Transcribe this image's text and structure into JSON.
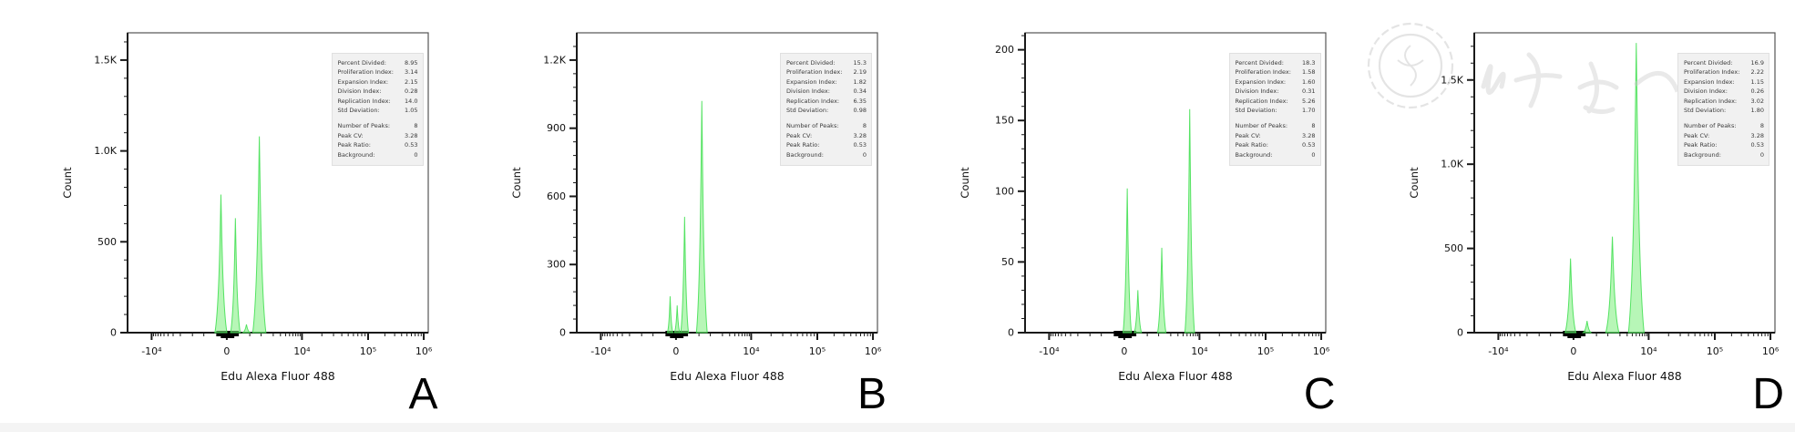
{
  "figure": {
    "xlabel": "Edu Alexa Fluor 488",
    "ylabel": "Count",
    "watermark_description": "faint journal seal and Chinese calligraphy watermark on panel D"
  },
  "colors": {
    "peak_fill": "rgba(124,238,124,0.55)",
    "peak_stroke": "rgba(70,224,85,0.9)",
    "axis": "#1a1a1a",
    "box_border": "#555555",
    "stats_bg": "#f1f1f1",
    "watermark": "#cccccc"
  },
  "chart_data": [
    {
      "panel": "A",
      "letter": "A",
      "type": "area",
      "xlabel": "Edu Alexa Fluor 488",
      "ylabel": "Count",
      "x_ticks": [
        {
          "v": -10000,
          "label": "-10⁴"
        },
        {
          "v": 0,
          "label": "0"
        },
        {
          "v": 10000,
          "label": "10⁴"
        },
        {
          "v": 100000,
          "label": "10⁵"
        },
        {
          "v": 1000000,
          "label": "10⁶"
        }
      ],
      "y_ticks": [
        {
          "v": 1500,
          "label": "1.5K"
        },
        {
          "v": 1000,
          "label": "1.0K"
        },
        {
          "v": 500,
          "label": "500"
        },
        {
          "v": 0,
          "label": "0"
        }
      ],
      "ymax": 1650,
      "peaks": [
        {
          "x": -100,
          "count": 760,
          "hw": 0.02
        },
        {
          "x": 150,
          "count": 630,
          "hw": 0.016
        },
        {
          "x": 400,
          "count": 45,
          "hw": 0.012
        },
        {
          "x": 900,
          "count": 1080,
          "hw": 0.022
        }
      ],
      "stats_main": [
        [
          "Percent Divided:",
          "8.95"
        ],
        [
          "Proliferation Index:",
          "3.14"
        ],
        [
          "Expansion Index:",
          "2.15"
        ],
        [
          "Division Index:",
          "0.28"
        ],
        [
          "Replication Index:",
          "14.0"
        ],
        [
          "Std Deviation:",
          "1.05"
        ]
      ],
      "stats_peaks": [
        [
          "Number of Peaks:",
          "8"
        ],
        [
          "Peak CV:",
          "3.28"
        ],
        [
          "Peak Ratio:",
          "0.53"
        ],
        [
          "Background:",
          "0"
        ]
      ]
    },
    {
      "panel": "B",
      "letter": "B",
      "type": "area",
      "xlabel": "Edu Alexa Fluor 488",
      "ylabel": "Count",
      "x_ticks": [
        {
          "v": -10000,
          "label": "-10⁴"
        },
        {
          "v": 0,
          "label": "0"
        },
        {
          "v": 10000,
          "label": "10⁴"
        },
        {
          "v": 100000,
          "label": "10⁵"
        },
        {
          "v": 1000000,
          "label": "10⁶"
        }
      ],
      "y_ticks": [
        {
          "v": 1200,
          "label": "1.2K"
        },
        {
          "v": 900,
          "label": "900"
        },
        {
          "v": 600,
          "label": "600"
        },
        {
          "v": 300,
          "label": "300"
        },
        {
          "v": 0,
          "label": "0"
        }
      ],
      "ymax": 1320,
      "peaks": [
        {
          "x": -100,
          "count": 160,
          "hw": 0.009
        },
        {
          "x": 20,
          "count": 120,
          "hw": 0.009
        },
        {
          "x": 150,
          "count": 510,
          "hw": 0.013
        },
        {
          "x": 600,
          "count": 1020,
          "hw": 0.018
        }
      ],
      "stats_main": [
        [
          "Percent Divided:",
          "15.3"
        ],
        [
          "Proliferation Index:",
          "2.19"
        ],
        [
          "Expansion Index:",
          "1.82"
        ],
        [
          "Division Index:",
          "0.34"
        ],
        [
          "Replication Index:",
          "6.35"
        ],
        [
          "Std Deviation:",
          "0.98"
        ]
      ],
      "stats_peaks": [
        [
          "Number of Peaks:",
          "8"
        ],
        [
          "Peak CV:",
          "3.28"
        ],
        [
          "Peak Ratio:",
          "0.53"
        ],
        [
          "Background:",
          "0"
        ]
      ]
    },
    {
      "panel": "C",
      "letter": "C",
      "type": "area",
      "xlabel": "Edu Alexa Fluor 488",
      "ylabel": "Count",
      "x_ticks": [
        {
          "v": -10000,
          "label": "-10⁴"
        },
        {
          "v": 0,
          "label": "0"
        },
        {
          "v": 10000,
          "label": "10⁴"
        },
        {
          "v": 100000,
          "label": "10⁵"
        },
        {
          "v": 1000000,
          "label": "10⁶"
        }
      ],
      "y_ticks": [
        {
          "v": 200,
          "label": "200"
        },
        {
          "v": 150,
          "label": "150"
        },
        {
          "v": 100,
          "label": "100"
        },
        {
          "v": 50,
          "label": "50"
        },
        {
          "v": 0,
          "label": "0"
        }
      ],
      "ymax": 212,
      "peaks": [
        {
          "x": 50,
          "count": 102,
          "hw": 0.014
        },
        {
          "x": 250,
          "count": 30,
          "hw": 0.012
        },
        {
          "x": 1200,
          "count": 60,
          "hw": 0.014
        },
        {
          "x": 5800,
          "count": 158,
          "hw": 0.016
        }
      ],
      "stats_main": [
        [
          "Percent Divided:",
          "18.3"
        ],
        [
          "Proliferation Index:",
          "1.58"
        ],
        [
          "Expansion Index:",
          "1.60"
        ],
        [
          "Division Index:",
          "0.31"
        ],
        [
          "Replication Index:",
          "5.26"
        ],
        [
          "Std Deviation:",
          "1.70"
        ]
      ],
      "stats_peaks": [
        [
          "Number of Peaks:",
          "8"
        ],
        [
          "Peak CV:",
          "3.28"
        ],
        [
          "Peak Ratio:",
          "0.53"
        ],
        [
          "Background:",
          "0"
        ]
      ]
    },
    {
      "panel": "D",
      "letter": "D",
      "type": "area",
      "xlabel": "Edu Alexa Fluor 488",
      "ylabel": "Count",
      "x_ticks": [
        {
          "v": -10000,
          "label": "-10⁴"
        },
        {
          "v": 0,
          "label": "0"
        },
        {
          "v": 10000,
          "label": "10⁴"
        },
        {
          "v": 100000,
          "label": "10⁵"
        },
        {
          "v": 1000000,
          "label": "10⁶"
        }
      ],
      "y_ticks": [
        {
          "v": 1500,
          "label": "1.5K"
        },
        {
          "v": 1000,
          "label": "1.0K"
        },
        {
          "v": 500,
          "label": "500"
        },
        {
          "v": 0,
          "label": "0"
        }
      ],
      "ymax": 1780,
      "peaks": [
        {
          "x": -50,
          "count": 440,
          "hw": 0.018
        },
        {
          "x": 250,
          "count": 70,
          "hw": 0.013
        },
        {
          "x": 1300,
          "count": 570,
          "hw": 0.022
        },
        {
          "x": 5000,
          "count": 1720,
          "hw": 0.026
        }
      ],
      "stats_main": [
        [
          "Percent Divided:",
          "16.9"
        ],
        [
          "Proliferation Index:",
          "2.22"
        ],
        [
          "Expansion Index:",
          "1.15"
        ],
        [
          "Division Index:",
          "0.26"
        ],
        [
          "Replication Index:",
          "3.02"
        ],
        [
          "Std Deviation:",
          "1.80"
        ]
      ],
      "stats_peaks": [
        [
          "Number of Peaks:",
          "8"
        ],
        [
          "Peak CV:",
          "3.28"
        ],
        [
          "Peak Ratio:",
          "0.53"
        ],
        [
          "Background:",
          "0"
        ]
      ]
    }
  ]
}
